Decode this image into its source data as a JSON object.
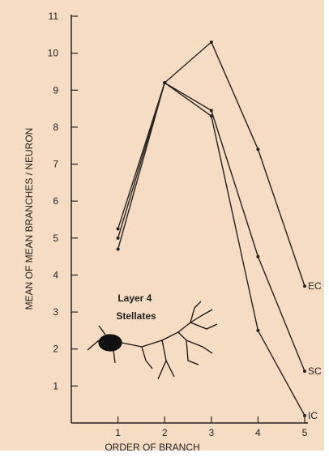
{
  "chart_data": {
    "type": "line",
    "x_label": "ORDER OF BRANCH",
    "y_label": "MEAN OF MEAN BRANCHES / NEURON",
    "annotation": "Layer 4 Stellates",
    "x": [
      1,
      2,
      3,
      4,
      5
    ],
    "series": [
      {
        "name": "EC",
        "color": "#222222",
        "values": [
          5.25,
          9.2,
          10.3,
          7.4,
          3.7
        ]
      },
      {
        "name": "SC",
        "color": "#222222",
        "values": [
          5.0,
          9.2,
          8.45,
          4.5,
          1.4
        ]
      },
      {
        "name": "IC",
        "color": "#222222",
        "values": [
          4.7,
          9.2,
          8.3,
          2.5,
          0.2
        ]
      }
    ],
    "xlim": [
      0,
      5
    ],
    "xticks": [
      1,
      2,
      3,
      4,
      5
    ],
    "ylim": [
      0,
      11
    ],
    "yticks": [
      1,
      2,
      3,
      4,
      5,
      6,
      7,
      8,
      9,
      10,
      11
    ],
    "grid": false
  }
}
